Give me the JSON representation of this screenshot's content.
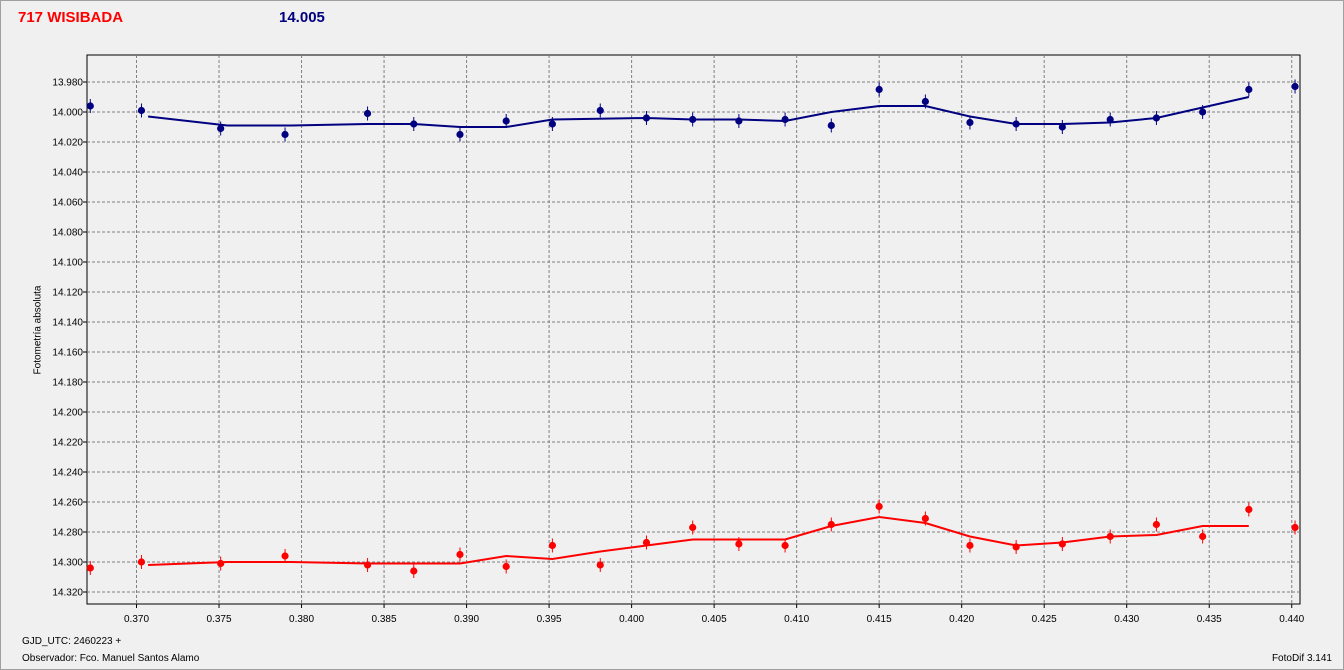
{
  "header": {
    "object_name": "717 WISIBADA",
    "comparison_magnitude": "14.005"
  },
  "footer": {
    "gjd": "GJD_UTC: 2460223 +",
    "observer": "Observador: Fco. Manuel Santos Alamo",
    "software": "FotoDif 3.141"
  },
  "colors": {
    "target": "#ff0000",
    "comparison": "#000080",
    "grid": "#808080",
    "background": "#f0f0f0"
  },
  "chart_data": {
    "type": "scatter",
    "title": "",
    "xlabel": "",
    "ylabel": "Fotometría absoluta",
    "xlim": [
      0.367,
      0.4405
    ],
    "ylim": [
      13.962,
      14.328
    ],
    "y_inverted": true,
    "grid": true,
    "x_ticks": [
      "0.370",
      "0.375",
      "0.380",
      "0.385",
      "0.390",
      "0.395",
      "0.400",
      "0.405",
      "0.410",
      "0.415",
      "0.420",
      "0.425",
      "0.430",
      "0.435",
      "0.440"
    ],
    "y_ticks": [
      "13.980",
      "14.000",
      "14.020",
      "14.040",
      "14.060",
      "14.080",
      "14.100",
      "14.120",
      "14.140",
      "14.160",
      "14.180",
      "14.200",
      "14.220",
      "14.240",
      "14.260",
      "14.280",
      "14.300",
      "14.320"
    ],
    "series": [
      {
        "color": "#000080",
        "points": {
          "x": [
            0.3672,
            0.3703,
            0.3751,
            0.379,
            0.384,
            0.3868,
            0.3896,
            0.3924,
            0.3952,
            0.3981,
            0.4009,
            0.4037,
            0.4065,
            0.4093,
            0.4121,
            0.415,
            0.4178,
            0.4205,
            0.4233,
            0.4261,
            0.429,
            0.4318,
            0.4346,
            0.4374,
            0.4402
          ],
          "y": [
            13.996,
            13.999,
            14.011,
            14.015,
            14.001,
            14.008,
            14.015,
            14.006,
            14.008,
            13.999,
            14.004,
            14.005,
            14.006,
            14.005,
            14.009,
            13.985,
            13.993,
            14.007,
            14.008,
            14.01,
            14.005,
            14.004,
            14.0,
            13.985,
            13.983
          ]
        },
        "fit": {
          "x": [
            0.3707,
            0.3755,
            0.3794,
            0.384,
            0.3868,
            0.3896,
            0.3924,
            0.3952,
            0.4009,
            0.4037,
            0.4065,
            0.4093,
            0.4121,
            0.415,
            0.4178,
            0.4205,
            0.4233,
            0.4261,
            0.429,
            0.4318,
            0.4346,
            0.4374
          ],
          "y": [
            14.003,
            14.009,
            14.009,
            14.008,
            14.008,
            14.01,
            14.01,
            14.005,
            14.004,
            14.005,
            14.005,
            14.006,
            14.0,
            13.996,
            13.996,
            14.003,
            14.008,
            14.008,
            14.007,
            14.004,
            13.997,
            13.99
          ]
        }
      },
      {
        "color": "#ff0000",
        "points": {
          "x": [
            0.3672,
            0.3703,
            0.3751,
            0.379,
            0.384,
            0.3868,
            0.3896,
            0.3924,
            0.3952,
            0.3981,
            0.4009,
            0.4037,
            0.4065,
            0.4093,
            0.4121,
            0.415,
            0.4178,
            0.4205,
            0.4233,
            0.4261,
            0.429,
            0.4318,
            0.4346,
            0.4374,
            0.4402
          ],
          "y": [
            14.304,
            14.3,
            14.301,
            14.296,
            14.302,
            14.306,
            14.295,
            14.303,
            14.289,
            14.302,
            14.287,
            14.277,
            14.288,
            14.289,
            14.275,
            14.263,
            14.271,
            14.289,
            14.29,
            14.288,
            14.283,
            14.275,
            14.283,
            14.265,
            14.277
          ]
        },
        "fit": {
          "x": [
            0.3707,
            0.3755,
            0.3794,
            0.384,
            0.3868,
            0.3896,
            0.3924,
            0.3952,
            0.3981,
            0.4009,
            0.4037,
            0.4065,
            0.4093,
            0.4121,
            0.415,
            0.4178,
            0.4205,
            0.4233,
            0.4261,
            0.429,
            0.4318,
            0.4346,
            0.4374
          ],
          "y": [
            14.302,
            14.3,
            14.3,
            14.301,
            14.301,
            14.301,
            14.296,
            14.298,
            14.293,
            14.289,
            14.285,
            14.285,
            14.285,
            14.276,
            14.27,
            14.274,
            14.283,
            14.289,
            14.287,
            14.283,
            14.282,
            14.276,
            14.276
          ]
        }
      }
    ]
  }
}
